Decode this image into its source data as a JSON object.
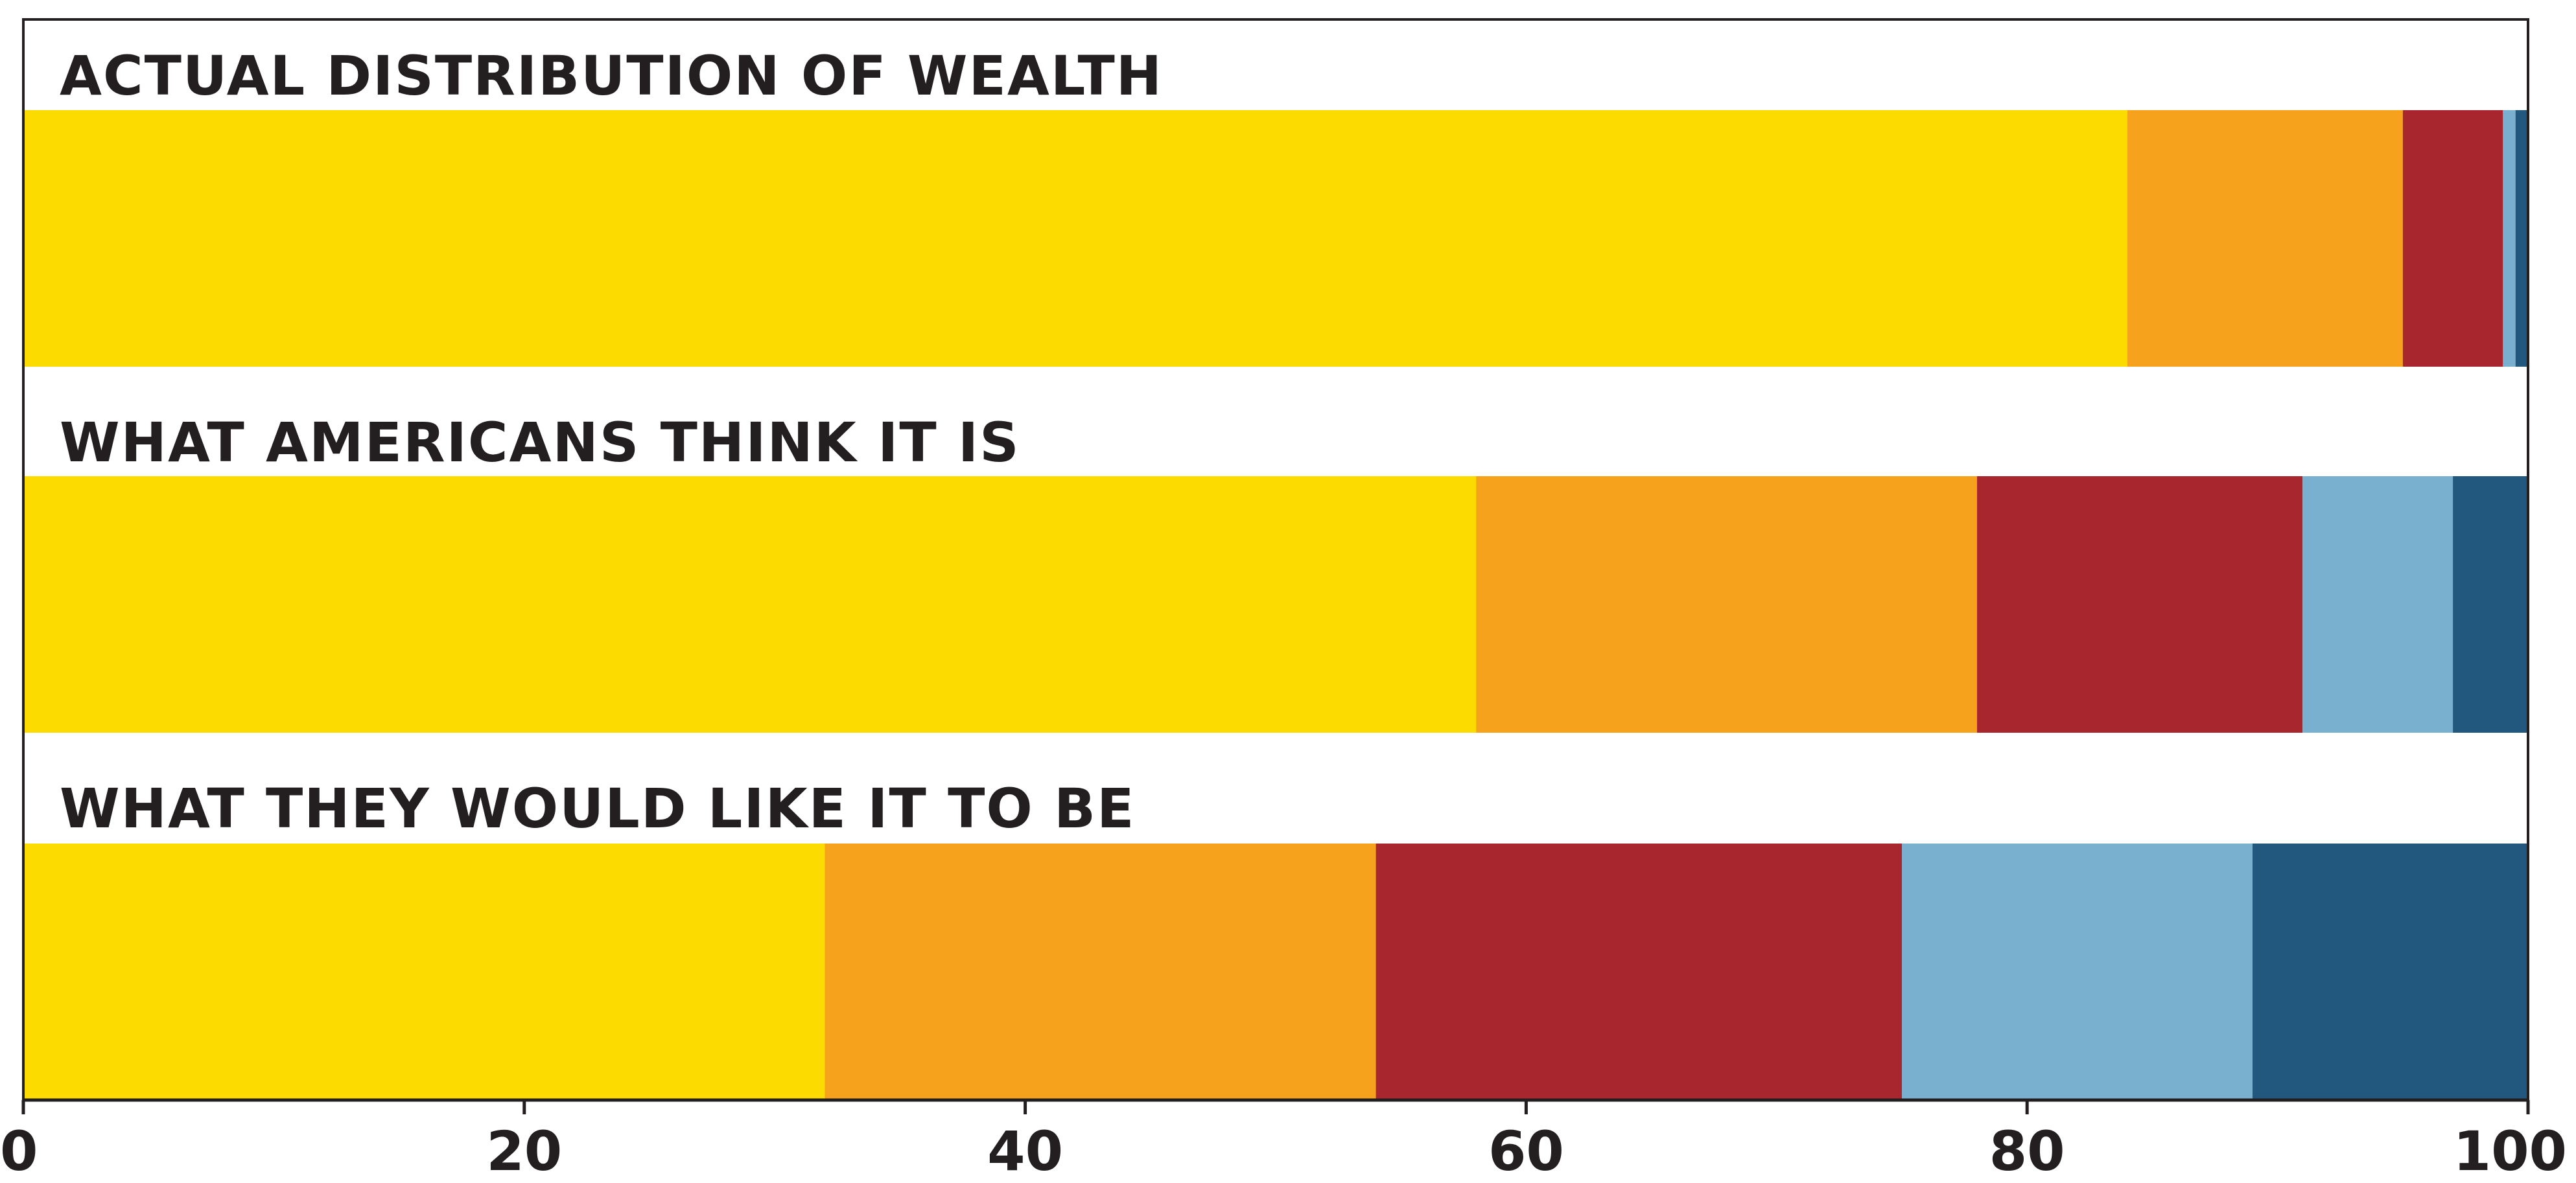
{
  "chart_data": {
    "type": "bar",
    "orientation": "horizontal",
    "stacked": true,
    "categories": [
      "ACTUAL DISTRIBUTION OF WEALTH",
      "WHAT AMERICANS THINK IT IS",
      "WHAT THEY WOULD LIKE IT TO BE"
    ],
    "series": [
      {
        "values": [
          84,
          58,
          32
        ],
        "color": "#fcdc00"
      },
      {
        "values": [
          11,
          20,
          22
        ],
        "color": "#f7a21c"
      },
      {
        "values": [
          4,
          13,
          21
        ],
        "color": "#a8262e"
      },
      {
        "values": [
          0.5,
          6,
          14
        ],
        "color": "#7ab0cf"
      },
      {
        "values": [
          0.5,
          3,
          11
        ],
        "color": "#22577e"
      }
    ],
    "title": "",
    "xlabel": "",
    "ylabel": "",
    "xlim": [
      0,
      100
    ],
    "xticks": [
      "0",
      "20",
      "40",
      "60",
      "80",
      "100"
    ],
    "grid": false,
    "legend": "none"
  }
}
